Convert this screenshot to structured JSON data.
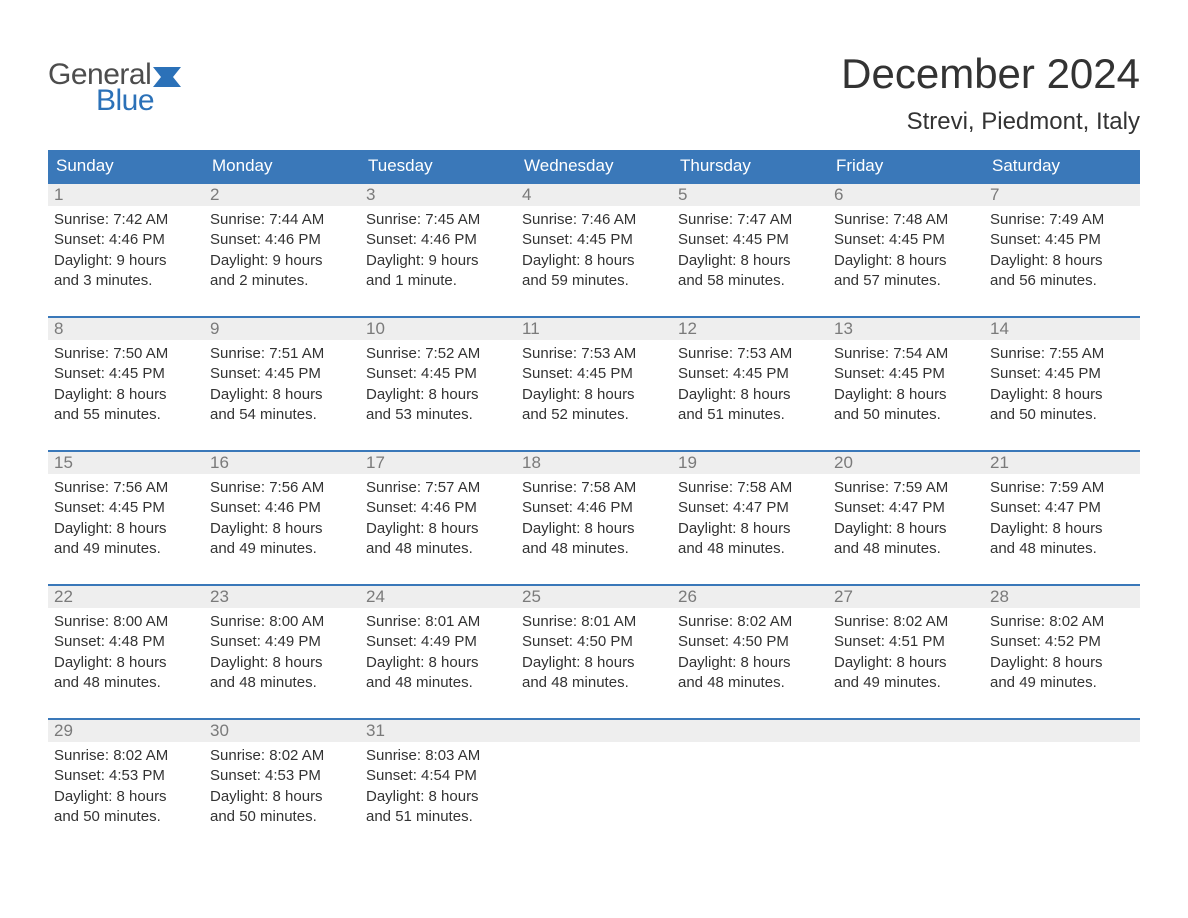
{
  "logo": {
    "text1": "General",
    "text2": "Blue",
    "flag_color": "#2b71b8"
  },
  "title": "December 2024",
  "location": "Strevi, Piedmont, Italy",
  "colors": {
    "header_bg": "#3a78b9",
    "header_text": "#ffffff",
    "week_border": "#3a78b9",
    "daynum_bg": "#eeeeee",
    "daynum_text": "#7a7a7a",
    "body_text": "#333333",
    "page_bg": "#ffffff"
  },
  "typography": {
    "title_fontsize": 42,
    "location_fontsize": 24,
    "header_fontsize": 17,
    "daynum_fontsize": 17,
    "body_fontsize": 15
  },
  "day_names": [
    "Sunday",
    "Monday",
    "Tuesday",
    "Wednesday",
    "Thursday",
    "Friday",
    "Saturday"
  ],
  "weeks": [
    [
      {
        "n": "1",
        "sr": "Sunrise: 7:42 AM",
        "ss": "Sunset: 4:46 PM",
        "d1": "Daylight: 9 hours",
        "d2": "and 3 minutes."
      },
      {
        "n": "2",
        "sr": "Sunrise: 7:44 AM",
        "ss": "Sunset: 4:46 PM",
        "d1": "Daylight: 9 hours",
        "d2": "and 2 minutes."
      },
      {
        "n": "3",
        "sr": "Sunrise: 7:45 AM",
        "ss": "Sunset: 4:46 PM",
        "d1": "Daylight: 9 hours",
        "d2": "and 1 minute."
      },
      {
        "n": "4",
        "sr": "Sunrise: 7:46 AM",
        "ss": "Sunset: 4:45 PM",
        "d1": "Daylight: 8 hours",
        "d2": "and 59 minutes."
      },
      {
        "n": "5",
        "sr": "Sunrise: 7:47 AM",
        "ss": "Sunset: 4:45 PM",
        "d1": "Daylight: 8 hours",
        "d2": "and 58 minutes."
      },
      {
        "n": "6",
        "sr": "Sunrise: 7:48 AM",
        "ss": "Sunset: 4:45 PM",
        "d1": "Daylight: 8 hours",
        "d2": "and 57 minutes."
      },
      {
        "n": "7",
        "sr": "Sunrise: 7:49 AM",
        "ss": "Sunset: 4:45 PM",
        "d1": "Daylight: 8 hours",
        "d2": "and 56 minutes."
      }
    ],
    [
      {
        "n": "8",
        "sr": "Sunrise: 7:50 AM",
        "ss": "Sunset: 4:45 PM",
        "d1": "Daylight: 8 hours",
        "d2": "and 55 minutes."
      },
      {
        "n": "9",
        "sr": "Sunrise: 7:51 AM",
        "ss": "Sunset: 4:45 PM",
        "d1": "Daylight: 8 hours",
        "d2": "and 54 minutes."
      },
      {
        "n": "10",
        "sr": "Sunrise: 7:52 AM",
        "ss": "Sunset: 4:45 PM",
        "d1": "Daylight: 8 hours",
        "d2": "and 53 minutes."
      },
      {
        "n": "11",
        "sr": "Sunrise: 7:53 AM",
        "ss": "Sunset: 4:45 PM",
        "d1": "Daylight: 8 hours",
        "d2": "and 52 minutes."
      },
      {
        "n": "12",
        "sr": "Sunrise: 7:53 AM",
        "ss": "Sunset: 4:45 PM",
        "d1": "Daylight: 8 hours",
        "d2": "and 51 minutes."
      },
      {
        "n": "13",
        "sr": "Sunrise: 7:54 AM",
        "ss": "Sunset: 4:45 PM",
        "d1": "Daylight: 8 hours",
        "d2": "and 50 minutes."
      },
      {
        "n": "14",
        "sr": "Sunrise: 7:55 AM",
        "ss": "Sunset: 4:45 PM",
        "d1": "Daylight: 8 hours",
        "d2": "and 50 minutes."
      }
    ],
    [
      {
        "n": "15",
        "sr": "Sunrise: 7:56 AM",
        "ss": "Sunset: 4:45 PM",
        "d1": "Daylight: 8 hours",
        "d2": "and 49 minutes."
      },
      {
        "n": "16",
        "sr": "Sunrise: 7:56 AM",
        "ss": "Sunset: 4:46 PM",
        "d1": "Daylight: 8 hours",
        "d2": "and 49 minutes."
      },
      {
        "n": "17",
        "sr": "Sunrise: 7:57 AM",
        "ss": "Sunset: 4:46 PM",
        "d1": "Daylight: 8 hours",
        "d2": "and 48 minutes."
      },
      {
        "n": "18",
        "sr": "Sunrise: 7:58 AM",
        "ss": "Sunset: 4:46 PM",
        "d1": "Daylight: 8 hours",
        "d2": "and 48 minutes."
      },
      {
        "n": "19",
        "sr": "Sunrise: 7:58 AM",
        "ss": "Sunset: 4:47 PM",
        "d1": "Daylight: 8 hours",
        "d2": "and 48 minutes."
      },
      {
        "n": "20",
        "sr": "Sunrise: 7:59 AM",
        "ss": "Sunset: 4:47 PM",
        "d1": "Daylight: 8 hours",
        "d2": "and 48 minutes."
      },
      {
        "n": "21",
        "sr": "Sunrise: 7:59 AM",
        "ss": "Sunset: 4:47 PM",
        "d1": "Daylight: 8 hours",
        "d2": "and 48 minutes."
      }
    ],
    [
      {
        "n": "22",
        "sr": "Sunrise: 8:00 AM",
        "ss": "Sunset: 4:48 PM",
        "d1": "Daylight: 8 hours",
        "d2": "and 48 minutes."
      },
      {
        "n": "23",
        "sr": "Sunrise: 8:00 AM",
        "ss": "Sunset: 4:49 PM",
        "d1": "Daylight: 8 hours",
        "d2": "and 48 minutes."
      },
      {
        "n": "24",
        "sr": "Sunrise: 8:01 AM",
        "ss": "Sunset: 4:49 PM",
        "d1": "Daylight: 8 hours",
        "d2": "and 48 minutes."
      },
      {
        "n": "25",
        "sr": "Sunrise: 8:01 AM",
        "ss": "Sunset: 4:50 PM",
        "d1": "Daylight: 8 hours",
        "d2": "and 48 minutes."
      },
      {
        "n": "26",
        "sr": "Sunrise: 8:02 AM",
        "ss": "Sunset: 4:50 PM",
        "d1": "Daylight: 8 hours",
        "d2": "and 48 minutes."
      },
      {
        "n": "27",
        "sr": "Sunrise: 8:02 AM",
        "ss": "Sunset: 4:51 PM",
        "d1": "Daylight: 8 hours",
        "d2": "and 49 minutes."
      },
      {
        "n": "28",
        "sr": "Sunrise: 8:02 AM",
        "ss": "Sunset: 4:52 PM",
        "d1": "Daylight: 8 hours",
        "d2": "and 49 minutes."
      }
    ],
    [
      {
        "n": "29",
        "sr": "Sunrise: 8:02 AM",
        "ss": "Sunset: 4:53 PM",
        "d1": "Daylight: 8 hours",
        "d2": "and 50 minutes."
      },
      {
        "n": "30",
        "sr": "Sunrise: 8:02 AM",
        "ss": "Sunset: 4:53 PM",
        "d1": "Daylight: 8 hours",
        "d2": "and 50 minutes."
      },
      {
        "n": "31",
        "sr": "Sunrise: 8:03 AM",
        "ss": "Sunset: 4:54 PM",
        "d1": "Daylight: 8 hours",
        "d2": "and 51 minutes."
      },
      {
        "empty": true
      },
      {
        "empty": true
      },
      {
        "empty": true
      },
      {
        "empty": true
      }
    ]
  ]
}
